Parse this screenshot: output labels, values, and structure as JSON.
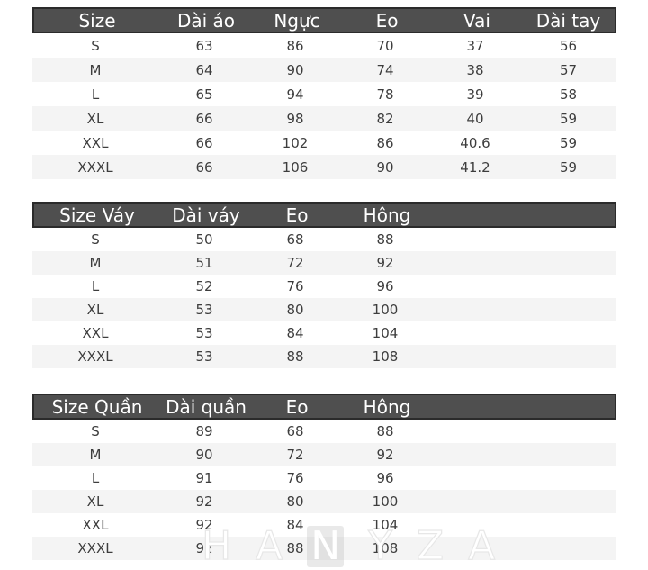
{
  "colors": {
    "header_bg": "#4f4f4f",
    "header_border": "#2b2b2b",
    "header_text": "#ffffff",
    "row_stripe": "#f4f4f4",
    "cell_text": "#3d3d3d",
    "watermark": "#e7e7e7"
  },
  "chart_data": [
    {
      "type": "table",
      "name": "shirt-size-chart",
      "columns": [
        "Size",
        "Dài áo",
        "Ngực",
        "Eo",
        "Vai",
        "Dài tay"
      ],
      "rows": [
        [
          "S",
          "63",
          "86",
          "70",
          "37",
          "56"
        ],
        [
          "M",
          "64",
          "90",
          "74",
          "38",
          "57"
        ],
        [
          "L",
          "65",
          "94",
          "78",
          "39",
          "58"
        ],
        [
          "XL",
          "66",
          "98",
          "82",
          "40",
          "59"
        ],
        [
          "XXL",
          "66",
          "102",
          "86",
          "40.6",
          "59"
        ],
        [
          "XXXL",
          "66",
          "106",
          "90",
          "41.2",
          "59"
        ]
      ]
    },
    {
      "type": "table",
      "name": "skirt-size-chart",
      "columns": [
        "Size Váy",
        "Dài váy",
        "Eo",
        "Hông"
      ],
      "rows": [
        [
          "S",
          "50",
          "68",
          "88"
        ],
        [
          "M",
          "51",
          "72",
          "92"
        ],
        [
          "L",
          "52",
          "76",
          "96"
        ],
        [
          "XL",
          "53",
          "80",
          "100"
        ],
        [
          "XXL",
          "53",
          "84",
          "104"
        ],
        [
          "XXXL",
          "53",
          "88",
          "108"
        ]
      ]
    },
    {
      "type": "table",
      "name": "pants-size-chart",
      "columns": [
        "Size Quần",
        "Dài quần",
        "Eo",
        "Hông"
      ],
      "rows": [
        [
          "S",
          "89",
          "68",
          "88"
        ],
        [
          "M",
          "90",
          "72",
          "92"
        ],
        [
          "L",
          "91",
          "76",
          "96"
        ],
        [
          "XL",
          "92",
          "80",
          "100"
        ],
        [
          "XXL",
          "92",
          "84",
          "104"
        ],
        [
          "XXXL",
          "92",
          "88",
          "108"
        ]
      ]
    }
  ],
  "watermark": {
    "text": "HANYZA",
    "letters": [
      "H",
      "A",
      "N",
      "Y",
      "Z",
      "A"
    ]
  }
}
